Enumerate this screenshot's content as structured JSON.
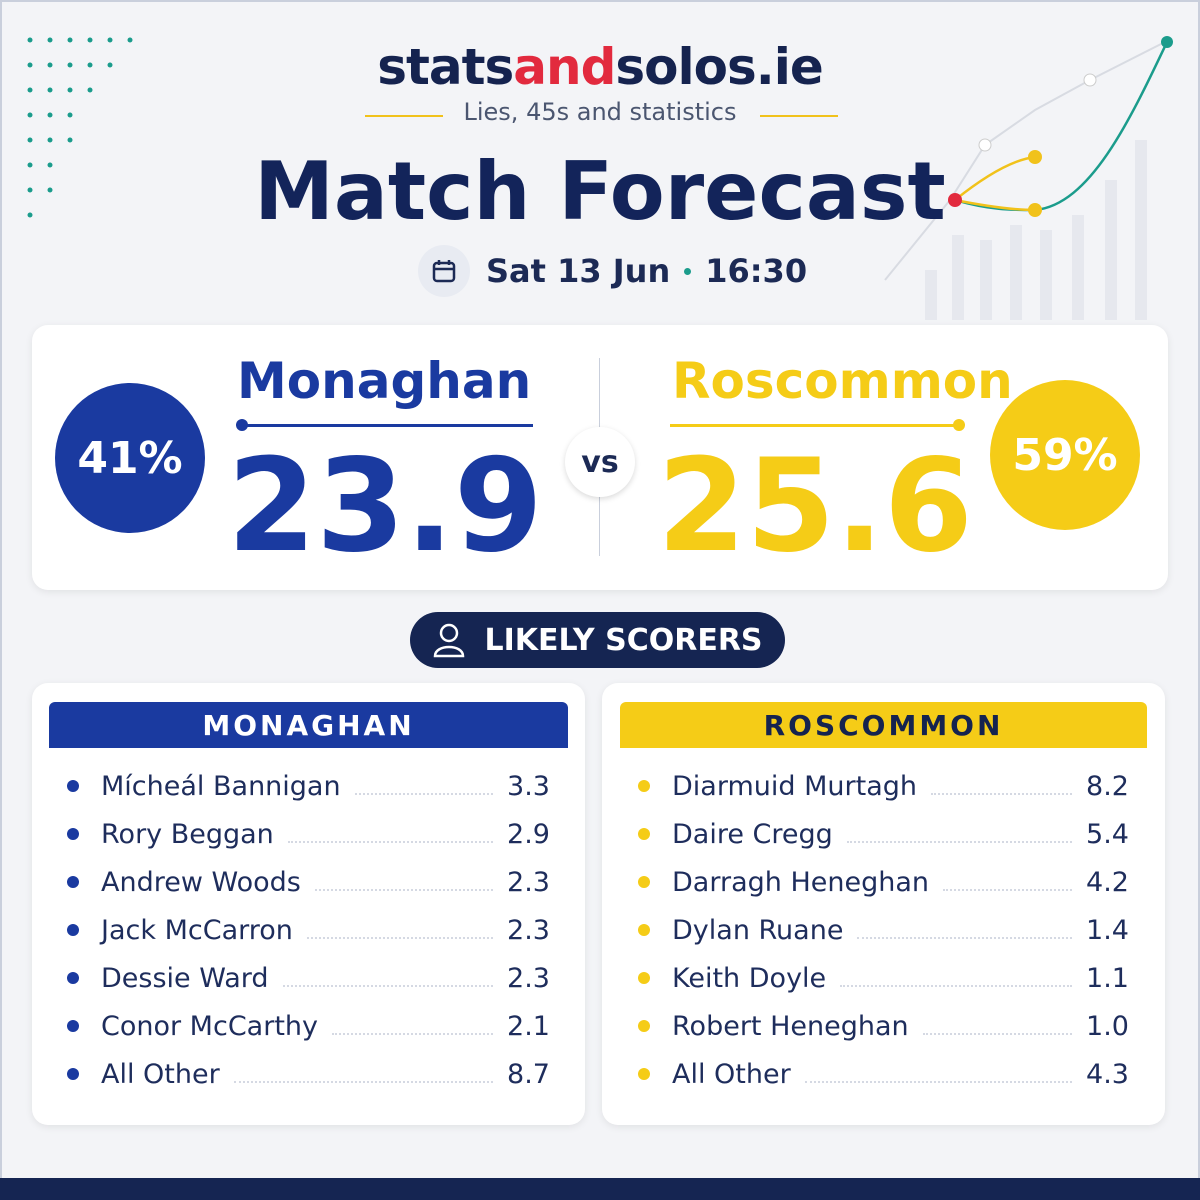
{
  "header": {
    "logo": [
      "stats",
      "and",
      "solos.ie"
    ],
    "tagline": "Lies, 45s and statistics",
    "title": "Match Forecast",
    "date": "Sat 13 Jun",
    "time": "16:30"
  },
  "teams": [
    {
      "name": "Monaghan",
      "win_probability": "41%",
      "predicted_score": "23.9"
    },
    {
      "name": "Roscommon",
      "win_probability": "59%",
      "predicted_score": "25.6"
    }
  ],
  "vs": "vs",
  "scorers_title": "LIKELY SCORERS",
  "scorers": [
    {
      "team": "MONAGHAN",
      "players": [
        {
          "name": "Mícheál Bannigan",
          "score": "3.3"
        },
        {
          "name": "Rory Beggan",
          "score": "2.9"
        },
        {
          "name": "Andrew Woods",
          "score": "2.3"
        },
        {
          "name": "Jack McCarron",
          "score": "2.3"
        },
        {
          "name": "Dessie Ward",
          "score": "2.3"
        },
        {
          "name": "Conor McCarthy",
          "score": "2.1"
        },
        {
          "name": "All Other",
          "score": "8.7"
        }
      ]
    },
    {
      "team": "ROSCOMMON",
      "players": [
        {
          "name": "Diarmuid Murtagh",
          "score": "8.2"
        },
        {
          "name": "Daire Cregg",
          "score": "5.4"
        },
        {
          "name": "Darragh Heneghan",
          "score": "4.2"
        },
        {
          "name": "Dylan Ruane",
          "score": "1.4"
        },
        {
          "name": "Keith Doyle",
          "score": "1.1"
        },
        {
          "name": "Robert Heneghan",
          "score": "1.0"
        },
        {
          "name": "All Other",
          "score": "4.3"
        }
      ]
    }
  ]
}
